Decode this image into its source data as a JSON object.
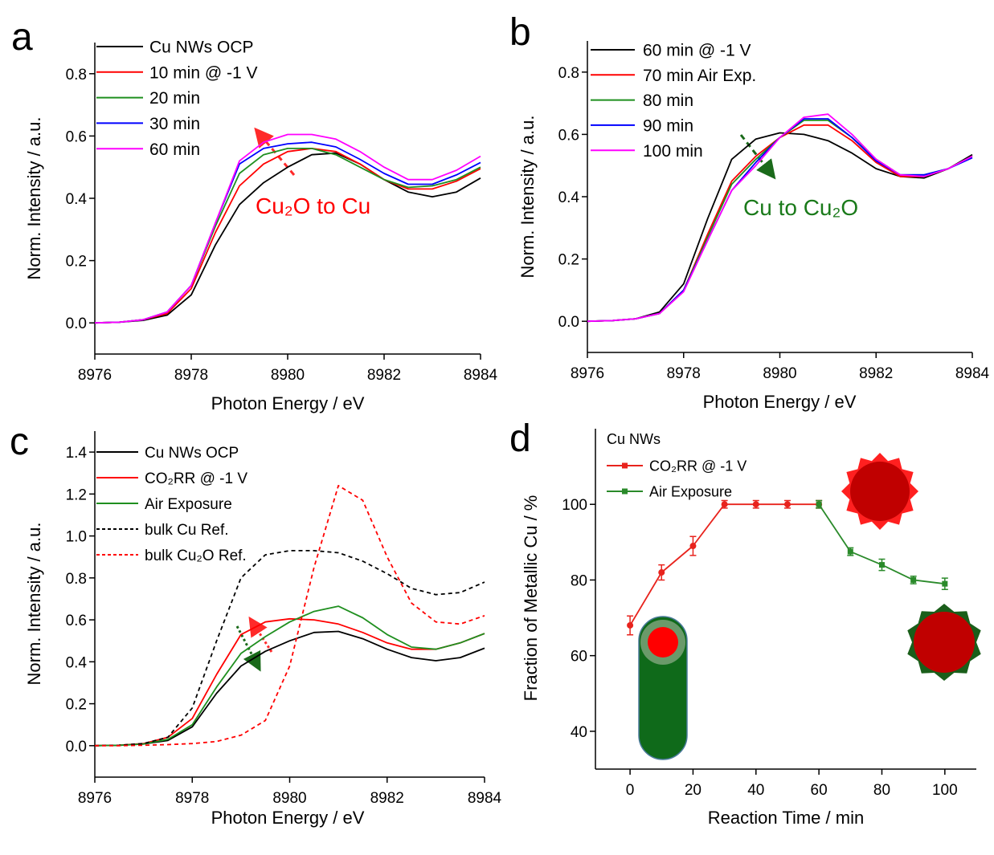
{
  "chart_data": [
    {
      "type": "line",
      "label": "a",
      "xlabel": "Photon Energy / eV",
      "ylabel": "Norm. Intensity / a.u.",
      "x": [
        8976,
        8976.5,
        8977,
        8977.5,
        8978,
        8978.5,
        8979,
        8979.5,
        8980,
        8980.5,
        8981,
        8981.5,
        8982,
        8982.5,
        8983,
        8983.5,
        8984
      ],
      "series": [
        {
          "name": "Cu NWs OCP",
          "color": "#000000",
          "values": [
            0,
            0.002,
            0.008,
            0.025,
            0.09,
            0.25,
            0.38,
            0.45,
            0.5,
            0.54,
            0.545,
            0.51,
            0.46,
            0.42,
            0.405,
            0.42,
            0.465
          ]
        },
        {
          "name": "10 min @ -1 V",
          "color": "#ff0000",
          "values": [
            0,
            0.002,
            0.01,
            0.03,
            0.11,
            0.29,
            0.44,
            0.51,
            0.55,
            0.56,
            0.55,
            0.51,
            0.46,
            0.43,
            0.43,
            0.455,
            0.495
          ]
        },
        {
          "name": "20 min",
          "color": "#1f8f1f",
          "values": [
            0,
            0.002,
            0.01,
            0.035,
            0.12,
            0.31,
            0.48,
            0.54,
            0.56,
            0.56,
            0.54,
            0.5,
            0.46,
            0.435,
            0.44,
            0.46,
            0.5
          ]
        },
        {
          "name": "30 min",
          "color": "#0000ff",
          "values": [
            0,
            0.002,
            0.01,
            0.035,
            0.12,
            0.32,
            0.51,
            0.56,
            0.575,
            0.58,
            0.565,
            0.525,
            0.48,
            0.445,
            0.445,
            0.475,
            0.515
          ]
        },
        {
          "name": "60 min",
          "color": "#ff00ff",
          "values": [
            0,
            0.002,
            0.01,
            0.035,
            0.12,
            0.32,
            0.52,
            0.58,
            0.605,
            0.605,
            0.59,
            0.55,
            0.5,
            0.46,
            0.46,
            0.49,
            0.535
          ]
        }
      ],
      "annotations": [
        {
          "text": "Cu₂O to Cu",
          "color": "#ff0000"
        }
      ],
      "xlim": [
        8976,
        8984
      ],
      "xticks": [
        8976,
        8978,
        8980,
        8982,
        8984
      ],
      "ylim": [
        -0.1,
        0.9
      ],
      "yticks": [
        {
          "value": 0,
          "label": "0.0"
        },
        0.2,
        0.4,
        0.6,
        0.8
      ]
    },
    {
      "type": "line",
      "label": "b",
      "xlabel": "Photon Energy / eV",
      "ylabel": "Norm. Intensity / a.u.",
      "x": [
        8976,
        8976.5,
        8977,
        8977.5,
        8978,
        8978.5,
        8979,
        8979.5,
        8980,
        8980.5,
        8981,
        8981.5,
        8982,
        8982.5,
        8983,
        8983.5,
        8984
      ],
      "series": [
        {
          "name": "60 min @ -1 V",
          "color": "#000000",
          "values": [
            0,
            0.002,
            0.008,
            0.03,
            0.12,
            0.33,
            0.52,
            0.585,
            0.605,
            0.6,
            0.58,
            0.54,
            0.49,
            0.465,
            0.46,
            0.49,
            0.535
          ]
        },
        {
          "name": "70 min Air Exp.",
          "color": "#ff0000",
          "values": [
            0,
            0.002,
            0.008,
            0.025,
            0.1,
            0.28,
            0.45,
            0.53,
            0.59,
            0.63,
            0.63,
            0.58,
            0.51,
            0.465,
            0.465,
            0.49,
            0.53
          ]
        },
        {
          "name": "80 min",
          "color": "#1f8f1f",
          "values": [
            0,
            0.002,
            0.008,
            0.025,
            0.1,
            0.27,
            0.44,
            0.52,
            0.59,
            0.645,
            0.645,
            0.59,
            0.52,
            0.47,
            0.47,
            0.49,
            0.53
          ]
        },
        {
          "name": "90 min",
          "color": "#0000ff",
          "values": [
            0,
            0.002,
            0.008,
            0.025,
            0.1,
            0.26,
            0.42,
            0.51,
            0.59,
            0.65,
            0.65,
            0.59,
            0.515,
            0.47,
            0.47,
            0.49,
            0.525
          ]
        },
        {
          "name": "100 min",
          "color": "#ff00ff",
          "values": [
            0,
            0.002,
            0.008,
            0.025,
            0.095,
            0.26,
            0.42,
            0.5,
            0.59,
            0.655,
            0.665,
            0.6,
            0.52,
            0.47,
            0.465,
            0.49,
            0.53
          ]
        }
      ],
      "annotations": [
        {
          "text": "Cu to Cu₂O",
          "color": "#1a7a1a"
        }
      ],
      "xlim": [
        8976,
        8984
      ],
      "xticks": [
        8976,
        8978,
        8980,
        8982,
        8984
      ],
      "ylim": [
        -0.1,
        0.9
      ],
      "yticks": [
        {
          "value": 0,
          "label": "0.0"
        },
        0.2,
        0.4,
        0.6,
        0.8
      ]
    },
    {
      "type": "line",
      "label": "c",
      "xlabel": "Photon Energy / eV",
      "ylabel": "Norm. Intensity / a.u.",
      "x": [
        8976,
        8976.5,
        8977,
        8977.5,
        8978,
        8978.5,
        8979,
        8979.5,
        8980,
        8980.5,
        8981,
        8981.5,
        8982,
        8982.5,
        8983,
        8983.5,
        8984
      ],
      "series": [
        {
          "name": "Cu NWs OCP",
          "color": "#000000",
          "linestyle": "solid",
          "values": [
            0,
            0.002,
            0.008,
            0.025,
            0.09,
            0.25,
            0.38,
            0.45,
            0.5,
            0.54,
            0.545,
            0.51,
            0.46,
            0.42,
            0.405,
            0.42,
            0.465
          ]
        },
        {
          "name": "CO₂RR @ -1 V",
          "color": "#ff0000",
          "linestyle": "solid",
          "values": [
            0,
            0.002,
            0.01,
            0.04,
            0.13,
            0.34,
            0.53,
            0.59,
            0.605,
            0.6,
            0.58,
            0.54,
            0.49,
            0.46,
            0.46,
            0.49,
            0.535
          ]
        },
        {
          "name": "Air Exposure",
          "color": "#1f8f1f",
          "linestyle": "solid",
          "values": [
            0,
            0.002,
            0.008,
            0.03,
            0.1,
            0.28,
            0.44,
            0.52,
            0.59,
            0.64,
            0.665,
            0.61,
            0.53,
            0.47,
            0.46,
            0.49,
            0.535
          ]
        },
        {
          "name": "bulk Cu Ref.",
          "color": "#000000",
          "linestyle": "dashed",
          "values": [
            0,
            0.002,
            0.01,
            0.04,
            0.18,
            0.5,
            0.8,
            0.91,
            0.93,
            0.93,
            0.92,
            0.88,
            0.82,
            0.75,
            0.72,
            0.73,
            0.78
          ]
        },
        {
          "name": "bulk Cu₂O Ref.",
          "color": "#ff0000",
          "linestyle": "dashed",
          "values": [
            0,
            0,
            0.002,
            0.005,
            0.01,
            0.02,
            0.05,
            0.12,
            0.38,
            0.85,
            1.24,
            1.17,
            0.9,
            0.68,
            0.59,
            0.58,
            0.62
          ]
        }
      ],
      "xlim": [
        8976,
        8984
      ],
      "xticks": [
        8976,
        8978,
        8980,
        8982,
        8984
      ],
      "ylim": [
        -0.15,
        1.5
      ],
      "yticks": [
        {
          "value": 0,
          "label": "0.0"
        },
        0.2,
        0.4,
        0.6,
        0.8,
        {
          "value": 1,
          "label": "1.0"
        },
        1.2,
        1.4
      ]
    },
    {
      "type": "errorbar",
      "label": "d",
      "xlabel": "Reaction Time / min",
      "ylabel": "Fraction of Metallic Cu / %",
      "legend_title": "Cu NWs",
      "series": [
        {
          "name": "CO₂RR @ -1 V",
          "color": "#e8231d",
          "x": [
            0,
            10,
            20,
            30,
            40,
            50,
            60
          ],
          "values": [
            68,
            82,
            89,
            100,
            100,
            100,
            100
          ],
          "errors": [
            2.5,
            2,
            2.5,
            1,
            1,
            1,
            1
          ]
        },
        {
          "name": "Air Exposure",
          "color": "#2a8a2a",
          "x": [
            60,
            70,
            80,
            90,
            100
          ],
          "values": [
            100,
            87.5,
            84,
            80,
            79
          ],
          "errors": [
            1,
            1,
            1.5,
            1,
            1.5
          ]
        }
      ],
      "xlim": [
        -11,
        110
      ],
      "xticks": [
        0,
        20,
        40,
        60,
        80,
        100
      ],
      "ylim": [
        30,
        120
      ],
      "yticks": [
        40,
        60,
        80,
        100
      ]
    }
  ]
}
